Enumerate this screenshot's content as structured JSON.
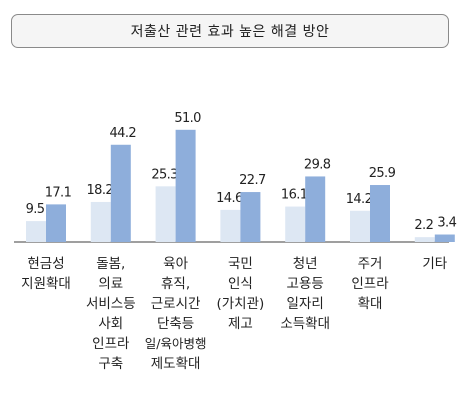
{
  "chart_data": {
    "type": "bar",
    "title": "저출산 관련 효과 높은 해결 방안",
    "categories": [
      [
        "현금성",
        "지원확대"
      ],
      [
        "돌봄,",
        "의료",
        "서비스등",
        "사회",
        "인프라",
        "구축"
      ],
      [
        "육아",
        "휴직,",
        "근로시간",
        "단축등",
        "일/육아병행",
        "제도확대"
      ],
      [
        "국민",
        "인식",
        "(가치관)",
        "제고"
      ],
      [
        "청년",
        "고용등",
        "일자리",
        "소득확대"
      ],
      [
        "주거",
        "인프라",
        "확대"
      ],
      [
        "기타"
      ]
    ],
    "series": [
      {
        "values": [
          9.5,
          18.2,
          25.3,
          14.6,
          16.1,
          14.2,
          2.2
        ]
      },
      {
        "values": [
          17.1,
          44.2,
          51.0,
          22.7,
          29.8,
          25.9,
          3.4
        ]
      }
    ],
    "value_labels": [
      [
        "9.5",
        "18.2",
        "25.3",
        "14.6",
        "16.1",
        "14.2",
        "2.2"
      ],
      [
        "17.1",
        "44.2",
        "51.0",
        "22.7",
        "29.8",
        "25.9",
        "3.4"
      ]
    ],
    "colors": [
      "#dde7f3",
      "#8eaedb"
    ],
    "axis_color": "#666666",
    "grid": false
  }
}
